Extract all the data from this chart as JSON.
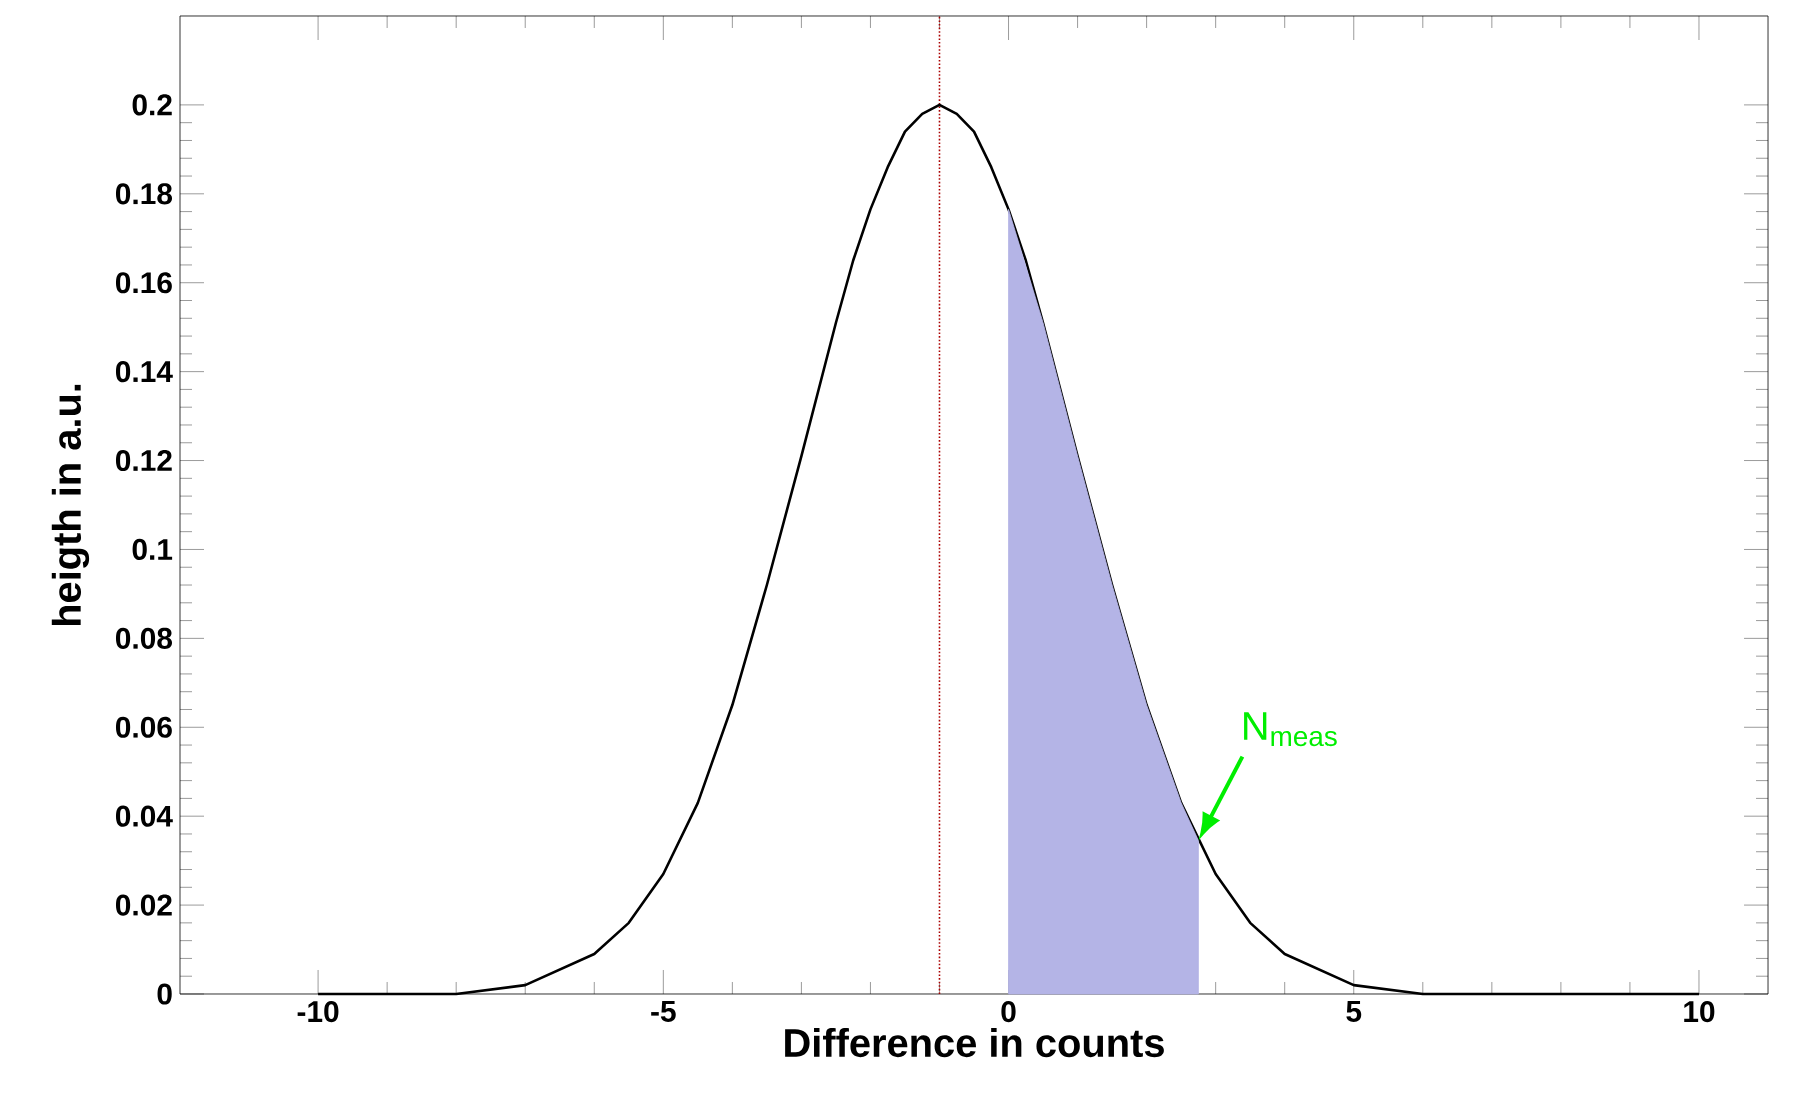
{
  "chart_data": {
    "type": "line",
    "xlabel": "Difference in counts",
    "ylabel": "heigth in a.u.",
    "xlim": [
      -12,
      11
    ],
    "ylim": [
      0,
      0.22
    ],
    "xticks": [
      -10,
      -5,
      0,
      5,
      10
    ],
    "yticks": [
      0,
      0.02,
      0.04,
      0.06,
      0.08,
      0.1,
      0.12,
      0.14,
      0.16,
      0.18,
      0.2
    ],
    "grid": false,
    "marker": "none",
    "series": [
      {
        "color": "#000000",
        "line_style": "solid",
        "x": [
          -10,
          -9,
          -8,
          -7,
          -6,
          -5.5,
          -5,
          -4.5,
          -4,
          -3.5,
          -3,
          -2.5,
          -2.25,
          -2,
          -1.75,
          -1.5,
          -1.25,
          -1,
          -0.75,
          -0.5,
          -0.25,
          0,
          0.25,
          0.5,
          1,
          1.5,
          2,
          2.5,
          3,
          3.5,
          4,
          5,
          6,
          7,
          8,
          9,
          10
        ],
        "values": [
          0,
          0,
          0,
          0.002,
          0.009,
          0.016,
          0.027,
          0.043,
          0.065,
          0.092,
          0.121,
          0.151,
          0.165,
          0.1765,
          0.186,
          0.194,
          0.198,
          0.2,
          0.198,
          0.194,
          0.186,
          0.1765,
          0.165,
          0.151,
          0.121,
          0.092,
          0.065,
          0.043,
          0.027,
          0.016,
          0.009,
          0.002,
          0,
          0,
          0,
          0,
          0
        ]
      },
      {
        "type": "area",
        "color": "#b4b4e6",
        "x": [
          0,
          0.5,
          1,
          1.5,
          2,
          2.5,
          2.75
        ],
        "values": [
          0.1765,
          0.151,
          0.121,
          0.092,
          0.065,
          0.043,
          0.0345
        ]
      }
    ],
    "ref_lines": [
      {
        "axis": "x",
        "value": -1,
        "color": "#aa0000",
        "line_style": "dotted"
      }
    ],
    "annotations": [
      {
        "text": "N$_{meas}$",
        "x": 2.75,
        "y": 0.0345
      }
    ]
  }
}
